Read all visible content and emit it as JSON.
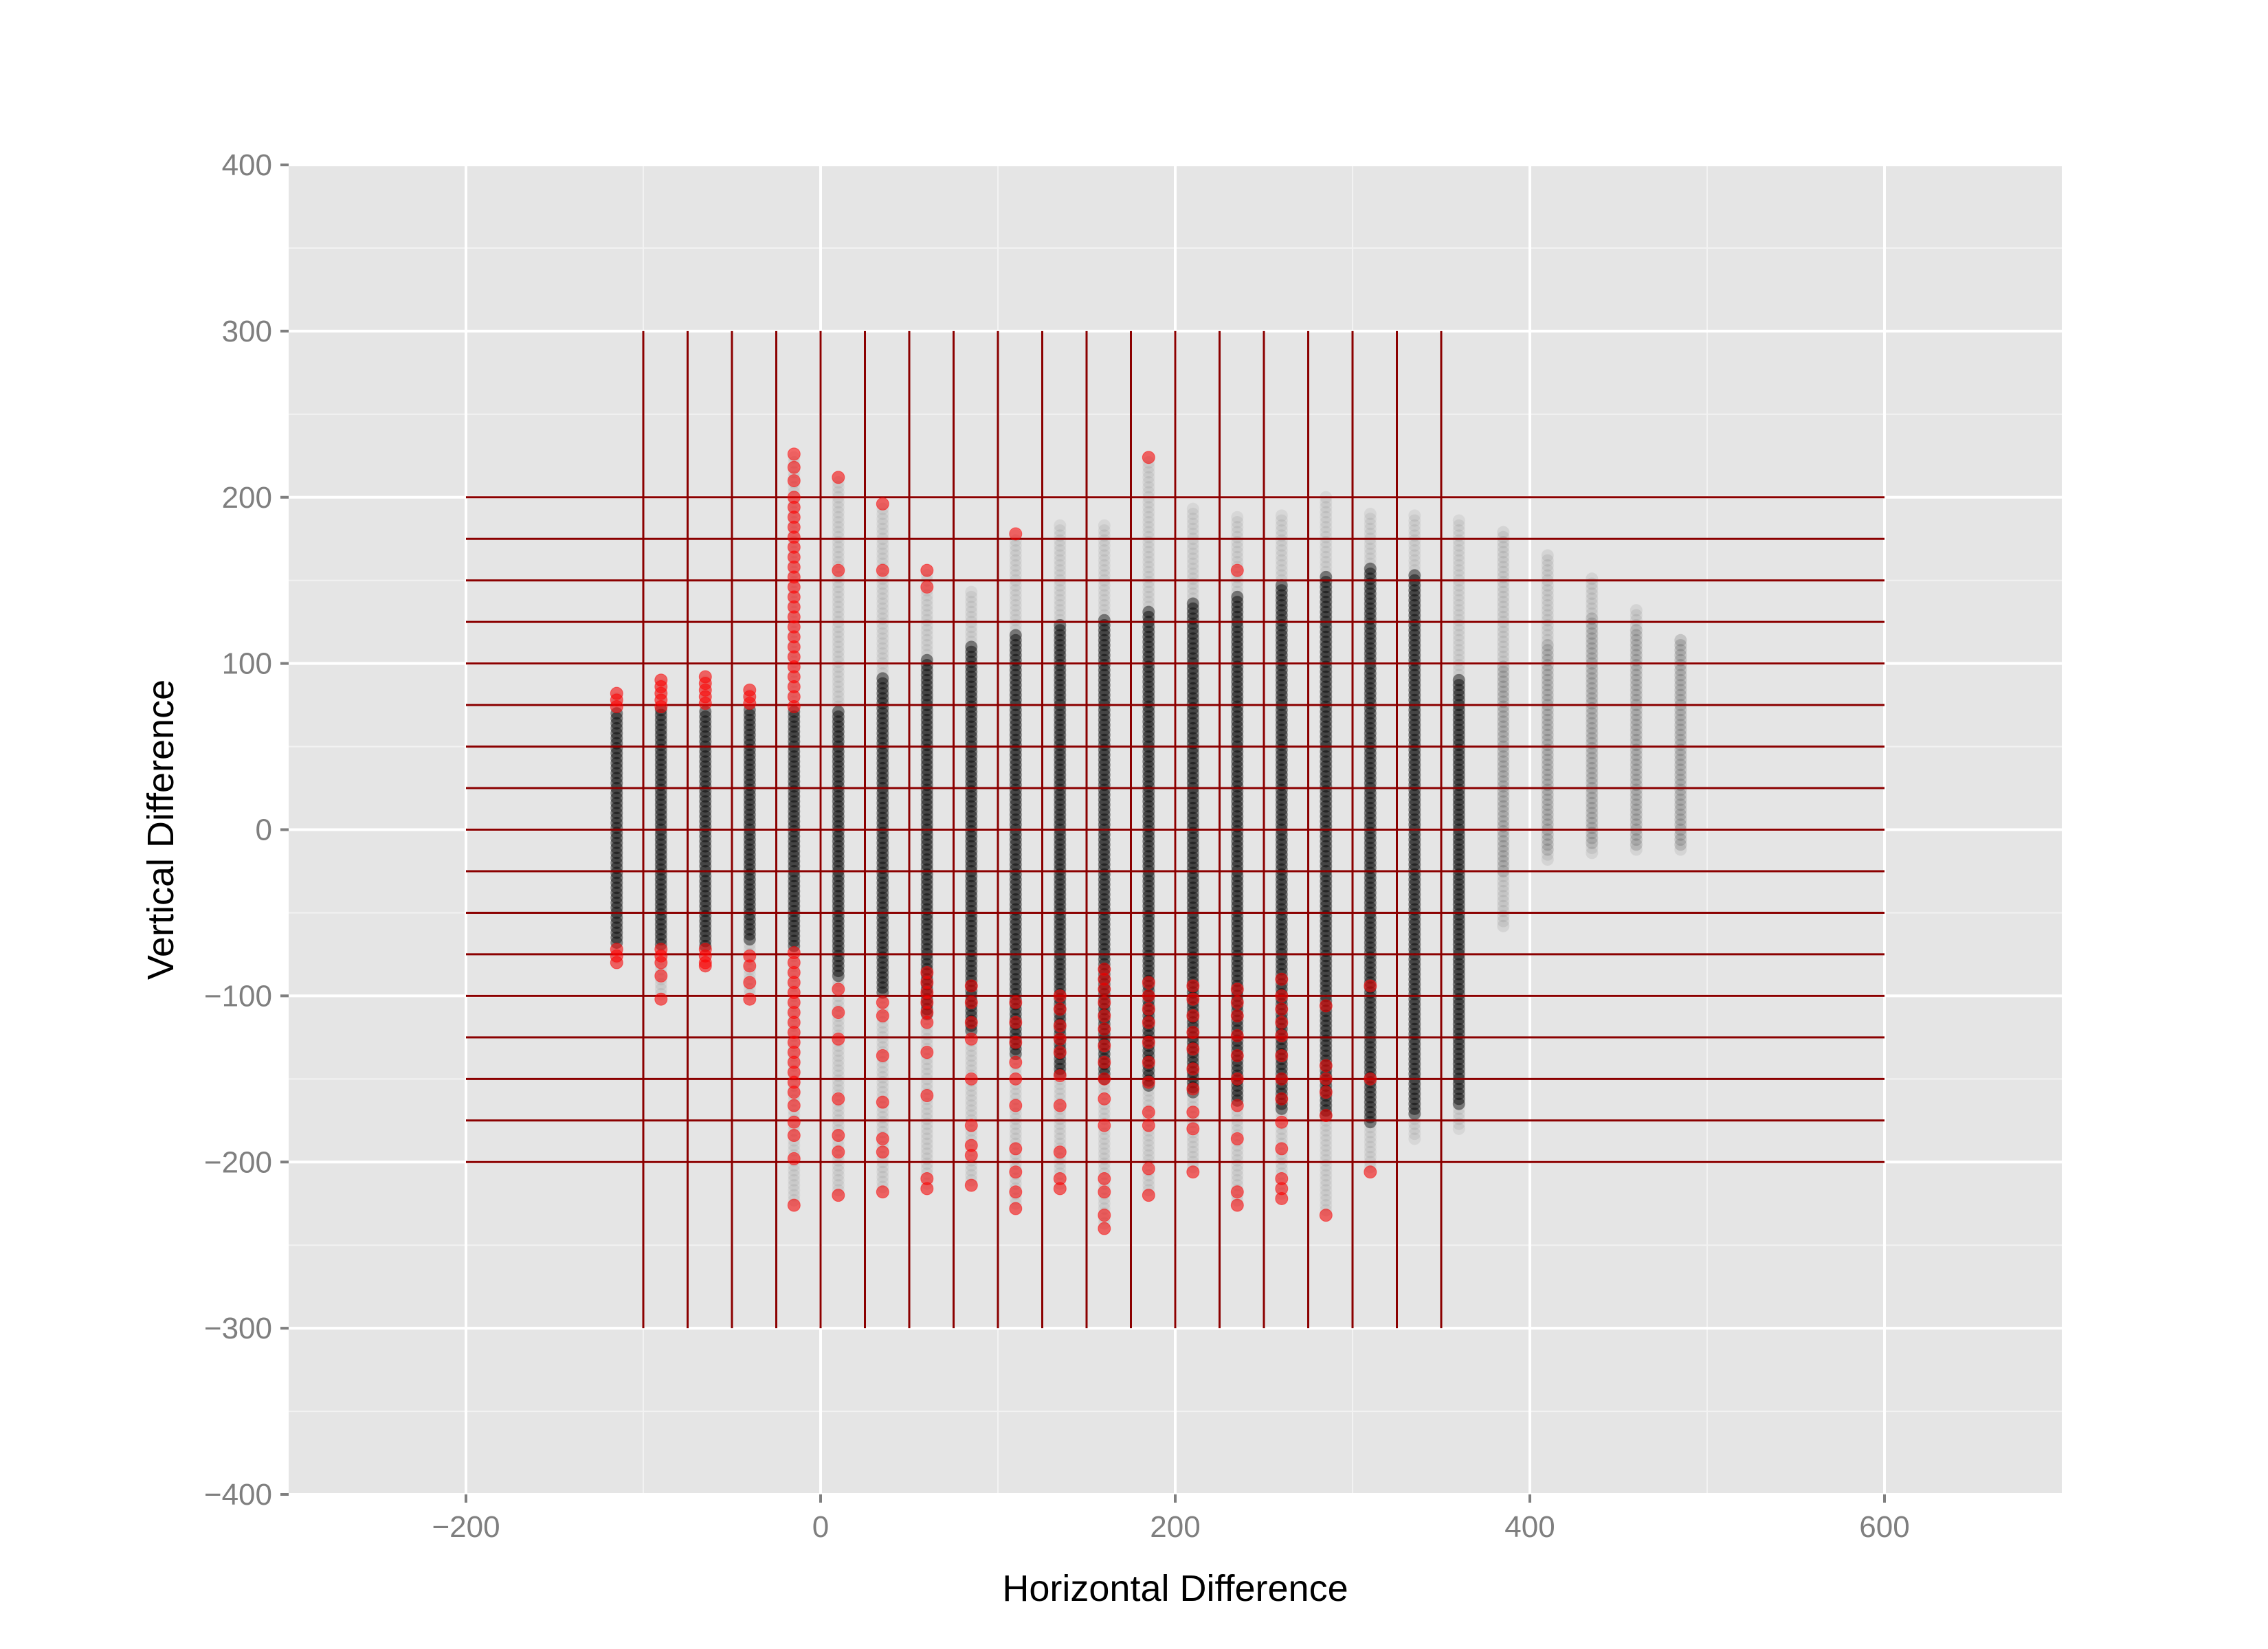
{
  "chart_data": {
    "type": "scatter",
    "title": "",
    "xlabel": "Horizontal Difference",
    "ylabel": "Vertical Difference",
    "xlim": [
      -300,
      700
    ],
    "ylim": [
      -400,
      400
    ],
    "x_ticks": [
      -200,
      0,
      200,
      400,
      600
    ],
    "x_tick_labels": [
      "−200",
      "0",
      "200",
      "400",
      "600"
    ],
    "y_ticks": [
      -400,
      -300,
      -200,
      -100,
      0,
      100,
      200,
      300,
      400
    ],
    "y_tick_labels": [
      "−400",
      "−300",
      "−200",
      "−100",
      "0",
      "100",
      "200",
      "300",
      "400"
    ],
    "grid": true,
    "legend": "none",
    "colors": {
      "panel_background": "#e5e5e5",
      "grid_major": "#ffffff",
      "grid_minor": "#f2f2f2",
      "inside_points": "#000000",
      "outside_points": "#ff0000",
      "bin_lines": "#8b0000",
      "tick_text": "#7f7f7f",
      "title_text": "#000000"
    },
    "bin_grid": {
      "vertical_lines_x": [
        -100,
        -75,
        -50,
        -25,
        0,
        25,
        50,
        75,
        100,
        125,
        150,
        175,
        200,
        225,
        250,
        275,
        300,
        325,
        350
      ],
      "vertical_lines_y_range": [
        -300,
        300
      ],
      "horizontal_lines_y": [
        -200,
        -175,
        -150,
        -125,
        -100,
        -75,
        -50,
        -25,
        0,
        25,
        50,
        75,
        100,
        125,
        150,
        175,
        200
      ],
      "horizontal_lines_x_range": [
        -200,
        600
      ]
    },
    "columns": [
      {
        "x": -115,
        "ymin": -80,
        "ymax": 82,
        "core_min": -70,
        "core_max": 72,
        "faint": false,
        "red_top": [
          82,
          78,
          74
        ],
        "red_bottom": [
          -72,
          -76,
          -80
        ],
        "red_scatter": []
      },
      {
        "x": -90,
        "ymin": -102,
        "ymax": 90,
        "core_min": -70,
        "core_max": 72,
        "faint": false,
        "red_top": [
          90,
          86,
          82,
          78,
          74
        ],
        "red_bottom": [
          -72,
          -76,
          -80
        ],
        "red_scatter": [
          -88,
          -102
        ]
      },
      {
        "x": -65,
        "ymin": -82,
        "ymax": 92,
        "core_min": -70,
        "core_max": 72,
        "faint": false,
        "red_top": [
          92,
          88,
          84,
          80,
          76
        ],
        "red_bottom": [
          -72,
          -76,
          -80,
          -82
        ],
        "red_scatter": []
      },
      {
        "x": -40,
        "ymin": -102,
        "ymax": 84,
        "core_min": -68,
        "core_max": 72,
        "faint": false,
        "red_top": [
          84,
          80,
          76
        ],
        "red_bottom": [],
        "red_scatter": [
          -76,
          -82,
          -92,
          -102
        ]
      },
      {
        "x": -15,
        "ymin": -226,
        "ymax": 226,
        "core_min": -72,
        "core_max": 72,
        "faint": false,
        "red_top": [
          226,
          218,
          210,
          200,
          194,
          188,
          182,
          176,
          170,
          164,
          158,
          152,
          146,
          140,
          134,
          128,
          122,
          116,
          110,
          104,
          98,
          92,
          86,
          80,
          74
        ],
        "red_bottom": [
          -74,
          -80,
          -86,
          -92,
          -98,
          -104,
          -110,
          -116,
          -122,
          -128,
          -134,
          -140,
          -146,
          -152,
          -158
        ],
        "red_scatter": [
          -166,
          -176,
          -184,
          -198,
          -226
        ]
      },
      {
        "x": 10,
        "ymin": -220,
        "ymax": 212,
        "core_min": -90,
        "core_max": 72,
        "faint": false,
        "red_top": [],
        "red_bottom": [],
        "red_scatter": [
          212,
          156,
          -96,
          -110,
          -126,
          -162,
          -184,
          -194,
          -220
        ]
      },
      {
        "x": 35,
        "ymin": -218,
        "ymax": 196,
        "core_min": -100,
        "core_max": 92,
        "faint": false,
        "red_top": [],
        "red_bottom": [],
        "red_scatter": [
          196,
          156,
          -104,
          -112,
          -136,
          -164,
          -186,
          -194,
          -218
        ]
      },
      {
        "x": 60,
        "ymin": -216,
        "ymax": 156,
        "core_min": -112,
        "core_max": 102,
        "faint": false,
        "red_top": [],
        "red_bottom": [],
        "red_scatter": [
          156,
          146,
          -86,
          -92,
          -98,
          -104,
          -110,
          -116,
          -134,
          -160,
          -210,
          -216
        ]
      },
      {
        "x": 85,
        "ymin": -214,
        "ymax": 144,
        "core_min": -122,
        "core_max": 112,
        "faint": false,
        "red_top": [],
        "red_bottom": [],
        "red_scatter": [
          -94,
          -104,
          -116,
          -126,
          -150,
          -178,
          -190,
          -196,
          -214
        ]
      },
      {
        "x": 110,
        "ymin": -228,
        "ymax": 178,
        "core_min": -136,
        "core_max": 118,
        "faint": false,
        "red_top": [],
        "red_bottom": [],
        "red_scatter": [
          178,
          -104,
          -116,
          -128,
          -140,
          -150,
          -166,
          -192,
          -206,
          -218,
          -228
        ]
      },
      {
        "x": 135,
        "ymin": -216,
        "ymax": 184,
        "core_min": -148,
        "core_max": 124,
        "faint": false,
        "red_top": [],
        "red_bottom": [],
        "red_scatter": [
          -100,
          -108,
          -118,
          -126,
          -134,
          -148,
          -166,
          -194,
          -210,
          -216
        ]
      },
      {
        "x": 160,
        "ymin": -240,
        "ymax": 184,
        "core_min": -152,
        "core_max": 128,
        "faint": false,
        "red_top": [],
        "red_bottom": [],
        "red_scatter": [
          -84,
          -90,
          -96,
          -104,
          -112,
          -120,
          -130,
          -140,
          -150,
          -162,
          -178,
          -210,
          -218,
          -232,
          -240
        ]
      },
      {
        "x": 185,
        "ymin": -220,
        "ymax": 224,
        "core_min": -156,
        "core_max": 132,
        "faint": false,
        "red_top": [],
        "red_bottom": [],
        "red_scatter": [
          224,
          -92,
          -100,
          -108,
          -116,
          -128,
          -140,
          -152,
          -170,
          -178,
          -204,
          -220
        ]
      },
      {
        "x": 210,
        "ymin": -206,
        "ymax": 194,
        "core_min": -160,
        "core_max": 136,
        "faint": false,
        "red_top": [],
        "red_bottom": [],
        "red_scatter": [
          -94,
          -102,
          -112,
          -122,
          -132,
          -144,
          -156,
          -170,
          -180,
          -206
        ]
      },
      {
        "x": 235,
        "ymin": -226,
        "ymax": 190,
        "core_min": -164,
        "core_max": 142,
        "faint": false,
        "red_top": [],
        "red_bottom": [],
        "red_scatter": [
          156,
          -96,
          -104,
          -112,
          -124,
          -136,
          -150,
          -166,
          -186,
          -218,
          -226
        ]
      },
      {
        "x": 260,
        "ymin": -222,
        "ymax": 190,
        "core_min": -170,
        "core_max": 148,
        "faint": false,
        "red_top": [],
        "red_bottom": [],
        "red_scatter": [
          -90,
          -100,
          -108,
          -116,
          -124,
          -136,
          -150,
          -162,
          -176,
          -192,
          -210,
          -216,
          -222
        ]
      },
      {
        "x": 285,
        "ymin": -232,
        "ymax": 200,
        "core_min": -174,
        "core_max": 154,
        "faint": false,
        "red_top": [],
        "red_bottom": [],
        "red_scatter": [
          -106,
          -142,
          -150,
          -158,
          -172,
          -232
        ]
      },
      {
        "x": 310,
        "ymin": -206,
        "ymax": 190,
        "core_min": -176,
        "core_max": 158,
        "faint": false,
        "red_top": [],
        "red_bottom": [],
        "red_scatter": [
          -94,
          -150,
          -206
        ]
      },
      {
        "x": 335,
        "ymin": -186,
        "ymax": 190,
        "core_min": -172,
        "core_max": 154,
        "faint": false,
        "red_top": [],
        "red_bottom": [],
        "red_scatter": []
      },
      {
        "x": 360,
        "ymin": -180,
        "ymax": 186,
        "core_min": -166,
        "core_max": 92,
        "faint": false,
        "red_top": [],
        "red_bottom": [],
        "red_scatter": []
      },
      {
        "x": 385,
        "ymin": -58,
        "ymax": 180,
        "core_min": -26,
        "core_max": 100,
        "faint": true,
        "red_top": [],
        "red_bottom": [],
        "red_scatter": []
      },
      {
        "x": 410,
        "ymin": -18,
        "ymax": 166,
        "core_min": -12,
        "core_max": 112,
        "faint": true,
        "red_top": [],
        "red_bottom": [],
        "red_scatter": []
      },
      {
        "x": 435,
        "ymin": -14,
        "ymax": 152,
        "core_min": -10,
        "core_max": 128,
        "faint": true,
        "red_top": [],
        "red_bottom": [],
        "red_scatter": []
      },
      {
        "x": 460,
        "ymin": -12,
        "ymax": 134,
        "core_min": -10,
        "core_max": 122,
        "faint": true,
        "red_top": [],
        "red_bottom": [],
        "red_scatter": []
      },
      {
        "x": 485,
        "ymin": -12,
        "ymax": 116,
        "core_min": -10,
        "core_max": 114,
        "faint": true,
        "red_top": [],
        "red_bottom": [],
        "red_scatter": []
      }
    ]
  }
}
